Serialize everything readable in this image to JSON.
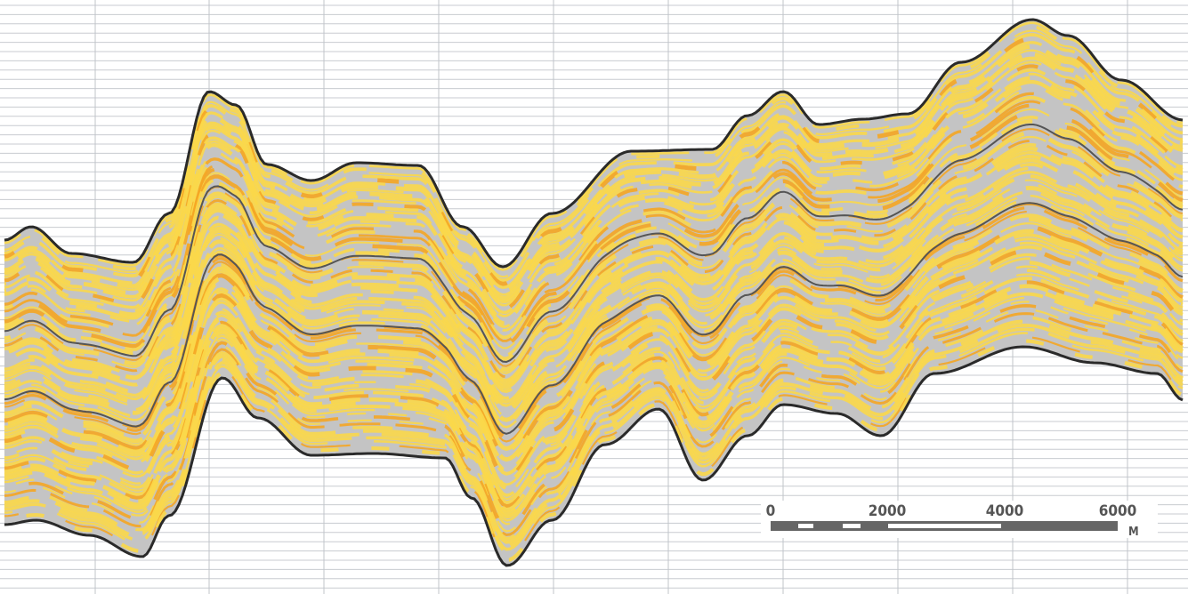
{
  "scale_bar": {
    "ticks": [
      "0",
      "2000",
      "4000",
      "6000"
    ],
    "unit": "M"
  }
}
